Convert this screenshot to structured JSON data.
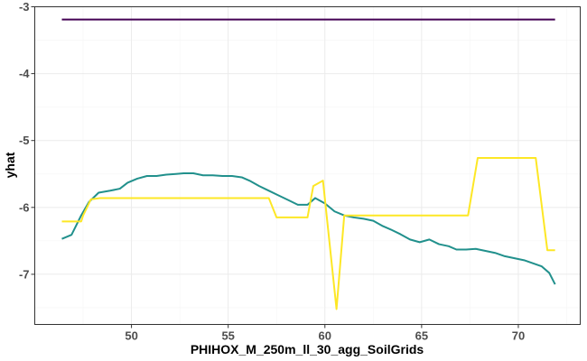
{
  "chart_data": {
    "type": "line",
    "title": "",
    "xlabel": "PHIHOX_M_250m_ll_30_agg_SoilGrids",
    "ylabel": "yhat",
    "xlim": [
      45.0,
      73.2
    ],
    "ylim": [
      -7.75,
      -3.0
    ],
    "x_ticks": [
      50,
      55,
      60,
      65,
      70
    ],
    "x_tick_labels": [
      "50",
      "55",
      "60",
      "65",
      "70"
    ],
    "y_ticks": [
      -7,
      -6,
      -5,
      -4,
      -3
    ],
    "y_tick_labels": [
      "-7",
      "-6",
      "-5",
      "-4",
      "-3"
    ],
    "grid": true,
    "legend": "none",
    "series": [
      {
        "name": "purple",
        "color": "#440154",
        "x": [
          46.4,
          71.9
        ],
        "y": [
          -3.19,
          -3.19
        ]
      },
      {
        "name": "teal",
        "color": "#21908C",
        "x": [
          46.4,
          46.9,
          47.4,
          47.8,
          48.3,
          48.9,
          49.4,
          49.8,
          50.3,
          50.8,
          51.3,
          51.8,
          52.3,
          52.7,
          53.2,
          53.7,
          54.2,
          54.7,
          55.2,
          55.7,
          56.1,
          56.6,
          57.1,
          57.6,
          58.1,
          58.6,
          59.1,
          59.5,
          60.0,
          60.5,
          61.0,
          61.5,
          62.0,
          62.5,
          63.0,
          63.4,
          63.9,
          64.4,
          64.9,
          65.4,
          65.9,
          66.4,
          66.8,
          67.3,
          67.8,
          68.3,
          68.8,
          69.3,
          69.8,
          70.3,
          70.7,
          71.2,
          71.6,
          71.9
        ],
        "y": [
          -6.47,
          -6.41,
          -6.12,
          -5.92,
          -5.78,
          -5.75,
          -5.72,
          -5.63,
          -5.57,
          -5.53,
          -5.53,
          -5.51,
          -5.5,
          -5.49,
          -5.49,
          -5.52,
          -5.52,
          -5.53,
          -5.53,
          -5.55,
          -5.6,
          -5.68,
          -5.75,
          -5.82,
          -5.89,
          -5.96,
          -5.96,
          -5.86,
          -5.94,
          -6.06,
          -6.12,
          -6.15,
          -6.17,
          -6.2,
          -6.28,
          -6.33,
          -6.4,
          -6.48,
          -6.52,
          -6.48,
          -6.55,
          -6.58,
          -6.63,
          -6.63,
          -6.62,
          -6.65,
          -6.68,
          -6.73,
          -6.76,
          -6.79,
          -6.83,
          -6.88,
          -6.98,
          -7.15
        ]
      },
      {
        "name": "yellow",
        "color": "#FDE725",
        "x": [
          46.4,
          47.4,
          47.5,
          47.9,
          48.4,
          50.0,
          53.0,
          56.0,
          57.1,
          57.5,
          59.1,
          59.4,
          59.9,
          60.6,
          61.0,
          63.0,
          66.0,
          67.4,
          67.9,
          70.9,
          71.5,
          71.9
        ],
        "y": [
          -6.21,
          -6.21,
          -6.12,
          -5.88,
          -5.86,
          -5.86,
          -5.86,
          -5.86,
          -5.86,
          -6.15,
          -6.15,
          -5.68,
          -5.6,
          -7.52,
          -6.12,
          -6.12,
          -6.12,
          -6.12,
          -5.26,
          -5.26,
          -6.64,
          -6.64
        ]
      }
    ]
  }
}
